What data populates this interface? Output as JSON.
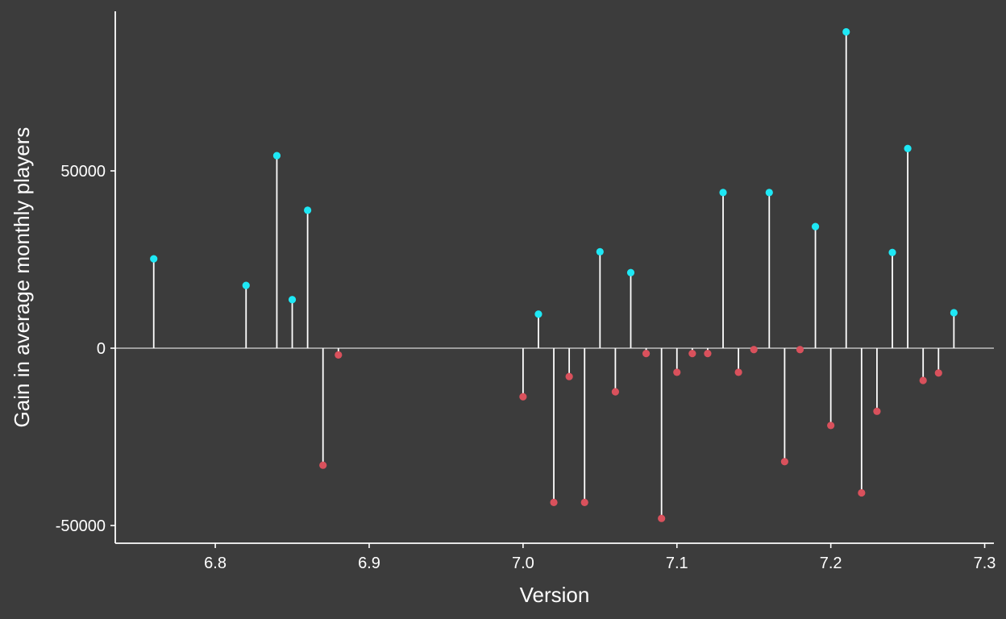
{
  "chart_data": {
    "type": "lollipop",
    "title": "",
    "xlabel": "Version",
    "ylabel": "Gain in average monthly players",
    "xlim": [
      6.735,
      7.306
    ],
    "ylim": [
      -55000,
      95000
    ],
    "x_ticks": [
      6.8,
      6.9,
      7.0,
      7.1,
      7.2,
      7.3
    ],
    "x_tick_labels": [
      "6.8",
      "6.9",
      "7.0",
      "7.1",
      "7.2",
      "7.3"
    ],
    "y_ticks": [
      -50000,
      0,
      50000
    ],
    "y_tick_labels": [
      "-50000",
      "0",
      "50000"
    ],
    "grid": false,
    "zero_line": true,
    "colors": {
      "background": "#3c3c3c",
      "axis": "#ffffff",
      "stem": "#ffffff",
      "positive": "#1ee8f5",
      "negative": "#d9515c",
      "zero_line": "#bdbdbd"
    },
    "points": [
      {
        "x": 6.76,
        "y": 25200
      },
      {
        "x": 6.82,
        "y": 17700
      },
      {
        "x": 6.84,
        "y": 54300
      },
      {
        "x": 6.85,
        "y": 13700
      },
      {
        "x": 6.86,
        "y": 38900
      },
      {
        "x": 6.87,
        "y": -33000
      },
      {
        "x": 6.88,
        "y": -1900
      },
      {
        "x": 7.0,
        "y": -13700
      },
      {
        "x": 7.01,
        "y": 9600
      },
      {
        "x": 7.02,
        "y": -43500
      },
      {
        "x": 7.03,
        "y": -8000
      },
      {
        "x": 7.04,
        "y": -43500
      },
      {
        "x": 7.05,
        "y": 27200
      },
      {
        "x": 7.06,
        "y": -12300
      },
      {
        "x": 7.07,
        "y": 21300
      },
      {
        "x": 7.08,
        "y": -1500
      },
      {
        "x": 7.09,
        "y": -48000
      },
      {
        "x": 7.1,
        "y": -6800
      },
      {
        "x": 7.11,
        "y": -1500
      },
      {
        "x": 7.12,
        "y": -1500
      },
      {
        "x": 7.13,
        "y": 43900
      },
      {
        "x": 7.14,
        "y": -6800
      },
      {
        "x": 7.15,
        "y": -400
      },
      {
        "x": 7.16,
        "y": 43900
      },
      {
        "x": 7.17,
        "y": -32000
      },
      {
        "x": 7.18,
        "y": -400
      },
      {
        "x": 7.19,
        "y": 34300
      },
      {
        "x": 7.2,
        "y": -21800
      },
      {
        "x": 7.21,
        "y": 89200
      },
      {
        "x": 7.22,
        "y": -40800
      },
      {
        "x": 7.23,
        "y": -17800
      },
      {
        "x": 7.24,
        "y": 27000
      },
      {
        "x": 7.25,
        "y": 56300
      },
      {
        "x": 7.26,
        "y": -9100
      },
      {
        "x": 7.27,
        "y": -7000
      },
      {
        "x": 7.28,
        "y": 10000
      }
    ]
  }
}
